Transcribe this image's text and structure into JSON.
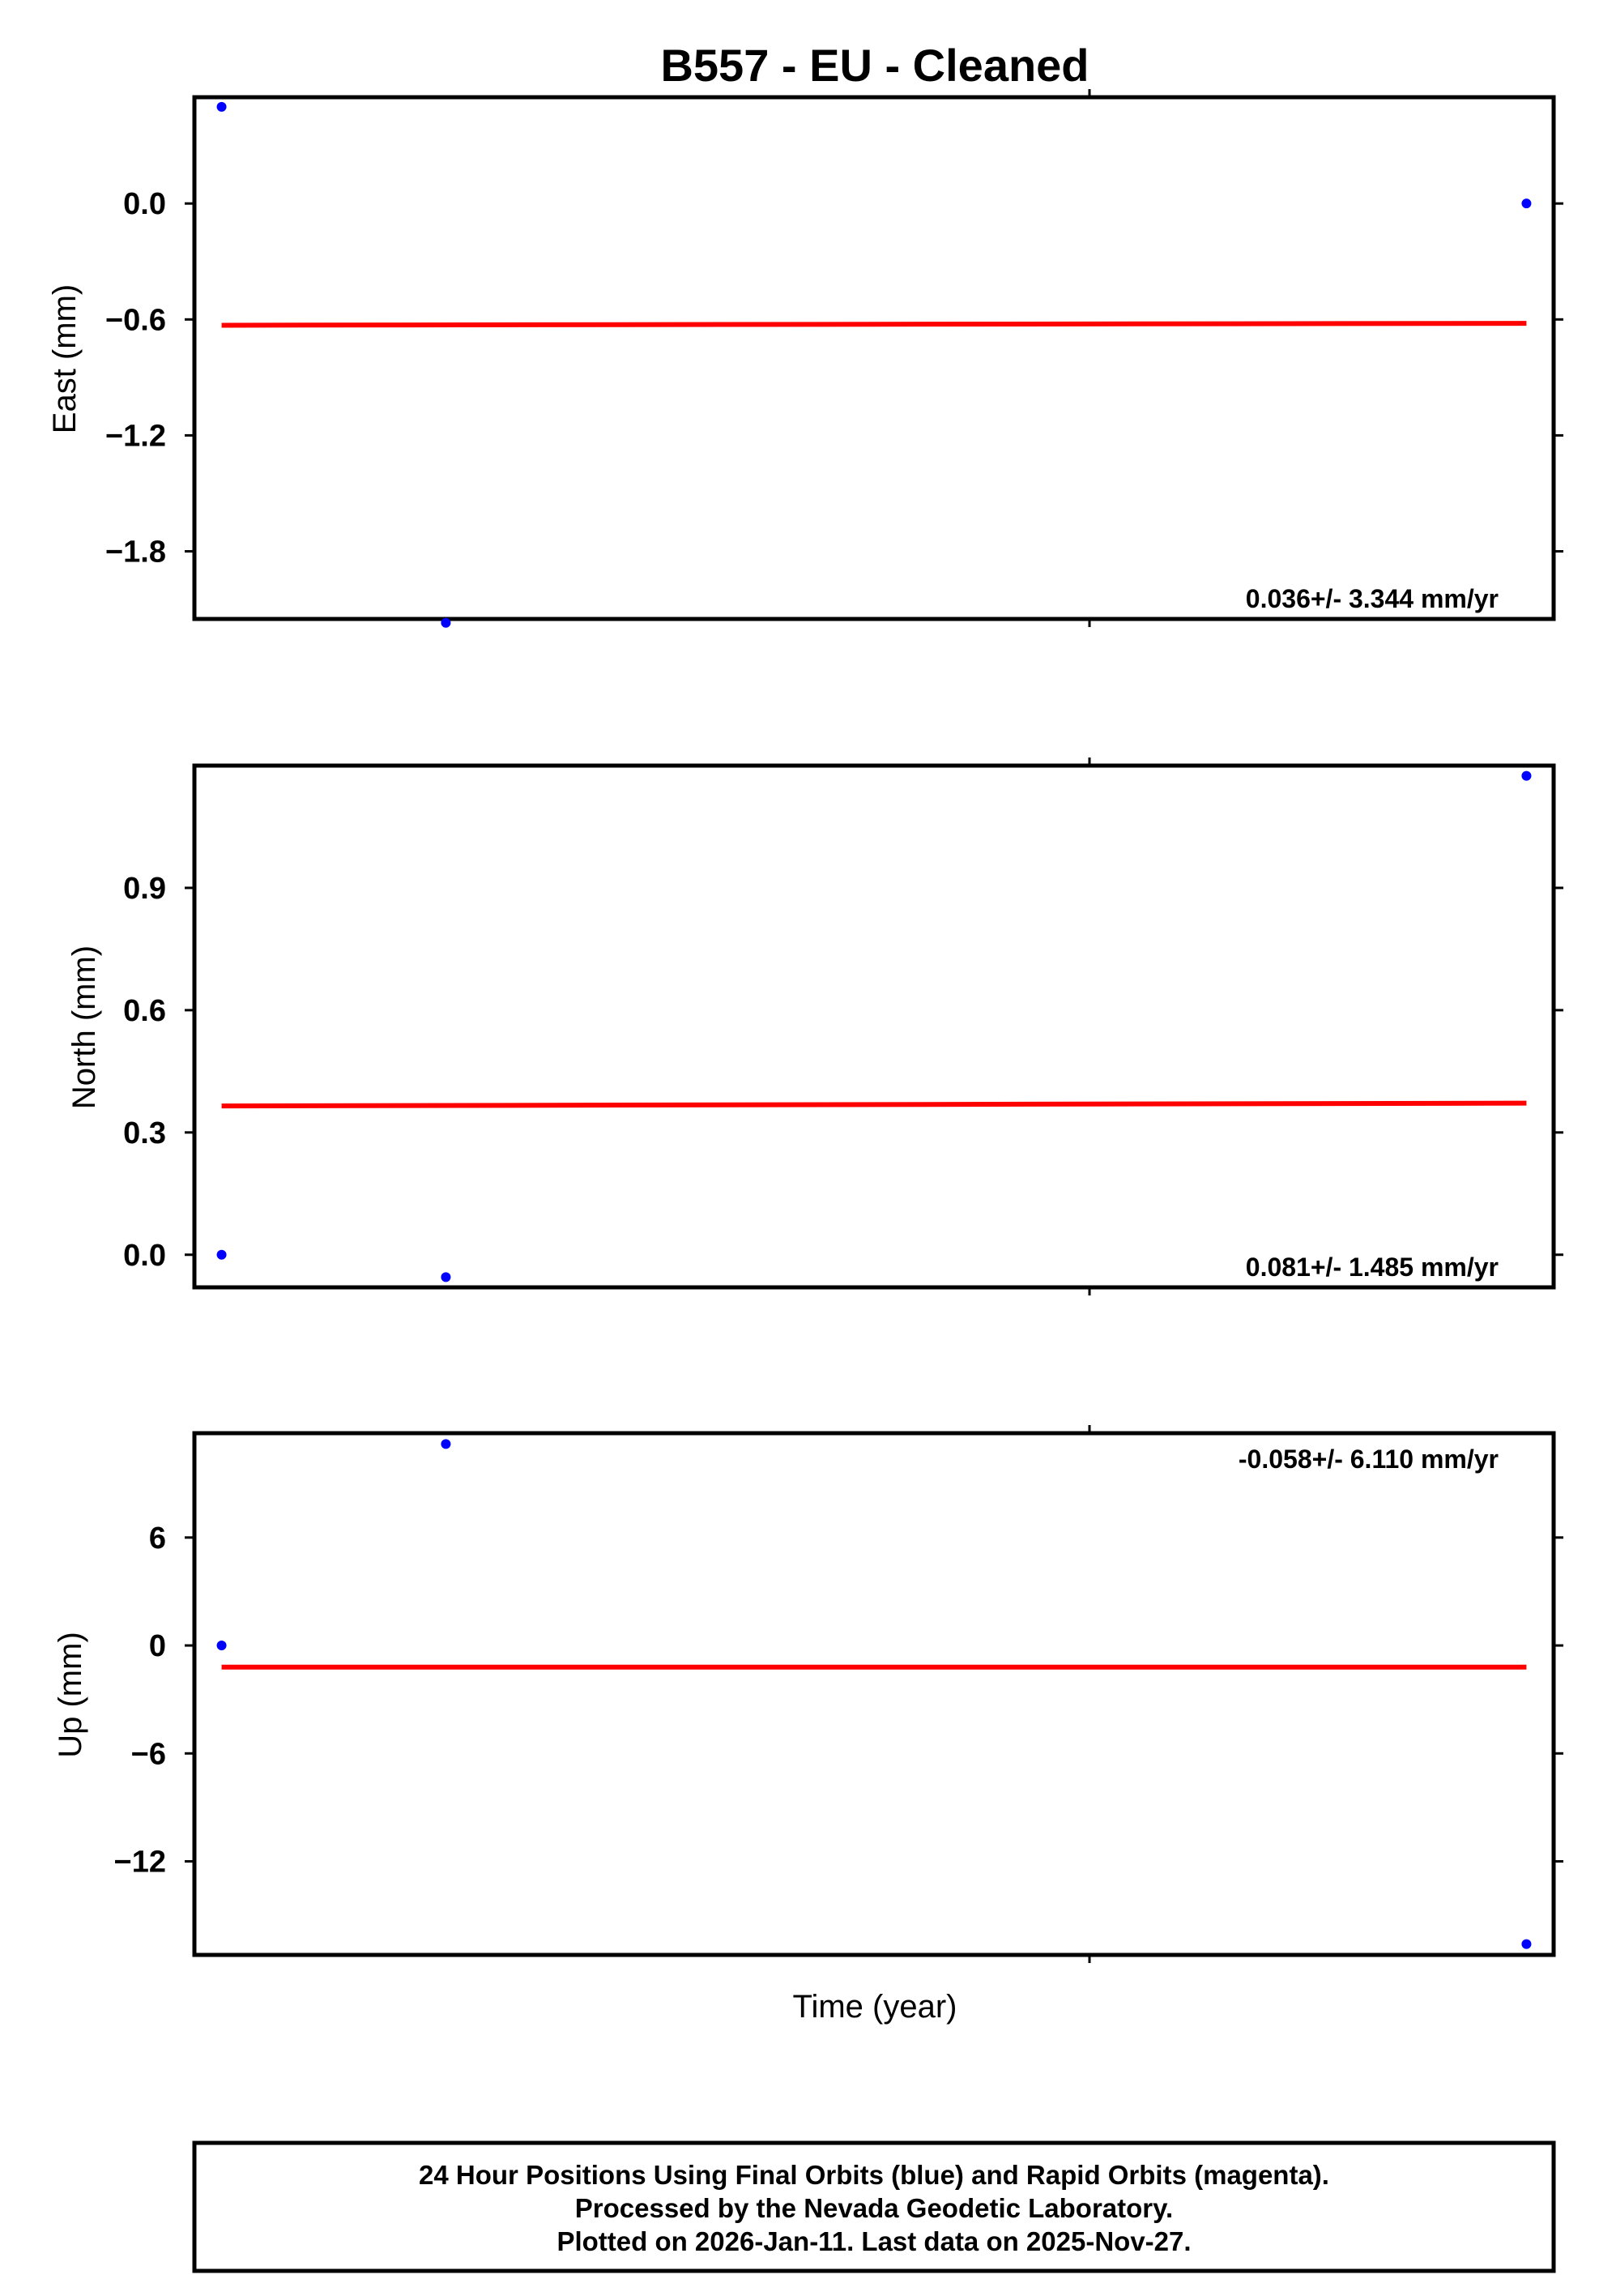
{
  "chart_data": {
    "title": "B557  - EU - Cleaned",
    "xlabel": "Time (year)",
    "type": "scatter",
    "panels": [
      {
        "ylabel": "East (mm)",
        "ylim": [
          -2.15,
          0.55
        ],
        "yticks": [
          0.0,
          -0.6,
          -1.2,
          -1.8
        ],
        "ytick_labels": [
          "0.0",
          "-0.6",
          "-1.2",
          "-1.8"
        ],
        "points": [
          {
            "x": 0.02,
            "y": 0.5
          },
          {
            "x": 0.185,
            "y": -2.17
          },
          {
            "x": 0.98,
            "y": 0.0
          }
        ],
        "fit": {
          "y_start": -0.63,
          "y_end": -0.62
        },
        "rate": "0.036+/- 3.344 mm/yr",
        "rate_position": "bottom-right"
      },
      {
        "ylabel": "North (mm)",
        "ylim": [
          -0.08,
          1.2
        ],
        "yticks": [
          0.9,
          0.6,
          0.3,
          0.0
        ],
        "ytick_labels": [
          "0.9",
          "0.6",
          "0.3",
          "0.0"
        ],
        "points": [
          {
            "x": 0.02,
            "y": 0.0
          },
          {
            "x": 0.185,
            "y": -0.055
          },
          {
            "x": 0.98,
            "y": 1.175
          }
        ],
        "fit": {
          "y_start": 0.365,
          "y_end": 0.372
        },
        "rate": "0.081+/- 1.485 mm/yr",
        "rate_position": "bottom-right"
      },
      {
        "ylabel": "Up (mm)",
        "ylim": [
          -17.2,
          11.8
        ],
        "yticks": [
          6,
          0,
          -6,
          -12
        ],
        "ytick_labels": [
          "6",
          "0",
          "-6",
          "-12"
        ],
        "points": [
          {
            "x": 0.02,
            "y": 0.0
          },
          {
            "x": 0.185,
            "y": 11.2
          },
          {
            "x": 0.98,
            "y": -16.6
          }
        ],
        "fit": {
          "y_start": -1.2,
          "y_end": -1.2
        },
        "rate": "-0.058+/- 6.110 mm/yr",
        "rate_position": "top-right"
      }
    ],
    "colors": {
      "points": "#0000ff",
      "fit": "#ff0000",
      "frame": "#000000"
    }
  },
  "footer": {
    "line1": "24 Hour Positions Using Final Orbits (blue) and Rapid Orbits (magenta).",
    "line2": "Processed by the Nevada Geodetic Laboratory.",
    "line3": "Plotted on 2026-Jan-11. Last data on 2025-Nov-27."
  }
}
